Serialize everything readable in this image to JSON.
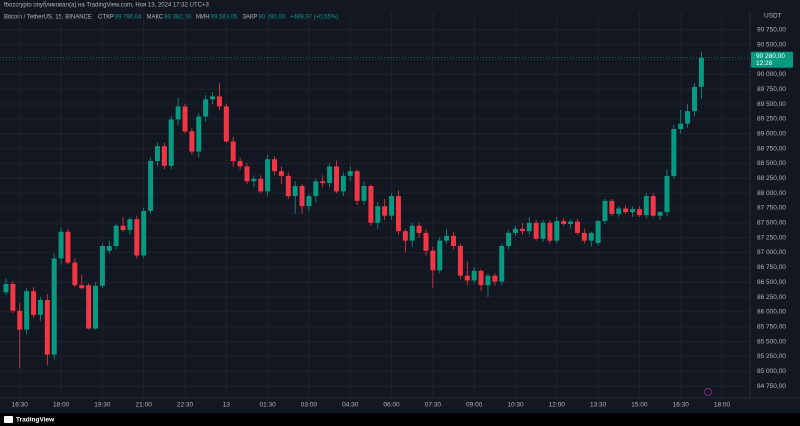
{
  "header": {
    "published": "fbozcrypto опубликовал(а) на TradingView.com, Ноя 13, 2024 17:32 UTC+3"
  },
  "footer": {
    "brand": "TradingView"
  },
  "chart_data": {
    "type": "candlestick",
    "symbol": "Bitcoin / TetherUS, 15, BINANCE",
    "legend": [
      {
        "label": "ОТКР",
        "value": "89 790,04"
      },
      {
        "label": "МАКС",
        "value": "90 382,00"
      },
      {
        "label": "МИН",
        "value": "89 589,05"
      },
      {
        "label": "ЗАКР",
        "value": "90 280,00"
      }
    ],
    "change": "+489,97 (+0,55%)",
    "currency": "USDT",
    "up_color": "#089981",
    "down_color": "#f23645",
    "grid": true,
    "categories": [
      null,
      null,
      "16:30",
      null,
      null,
      null,
      null,
      null,
      "18:00",
      null,
      null,
      null,
      null,
      null,
      "19:30",
      null,
      null,
      null,
      null,
      null,
      "21:00",
      null,
      null,
      null,
      null,
      null,
      "22:30",
      null,
      null,
      null,
      null,
      null,
      "13",
      null,
      null,
      null,
      null,
      null,
      "01:30",
      null,
      null,
      null,
      null,
      null,
      "03:00",
      null,
      null,
      null,
      null,
      null,
      "04:30",
      null,
      null,
      null,
      null,
      null,
      "06:00",
      null,
      null,
      null,
      null,
      null,
      "07:30",
      null,
      null,
      null,
      null,
      null,
      "09:00",
      null,
      null,
      null,
      null,
      null,
      "10:30",
      null,
      null,
      null,
      null,
      null,
      "12:00",
      null,
      null,
      null,
      null,
      null,
      "13:30",
      null,
      null,
      null,
      null,
      null,
      "15:00",
      null,
      null,
      null,
      null,
      null,
      "16:30",
      null,
      null,
      null,
      null,
      null,
      "18:00"
    ],
    "open": [
      86330,
      86470,
      86020,
      85700,
      86350,
      85950,
      86200,
      85280,
      86900,
      87350,
      86830,
      86450,
      86450,
      85720,
      86440,
      87030,
      87110,
      87450,
      87380,
      87560,
      86950,
      87700,
      88540,
      88790,
      88460,
      89240,
      89460,
      89040,
      88700,
      89290,
      89580,
      89630,
      89460,
      88870,
      88540,
      88450,
      88200,
      88240,
      88030,
      88570,
      88370,
      88290,
      87950,
      88120,
      87780,
      87950,
      88200,
      88170,
      88450,
      88030,
      88290,
      88370,
      87870,
      88120,
      87500,
      87780,
      87620,
      87950,
      87360,
      87200,
      87450,
      87330,
      87030,
      86700,
      87200,
      87280,
      87110,
      86610,
      86530,
      86690,
      86450,
      86610,
      86510,
      87110,
      87330,
      87400,
      87360,
      87500,
      87230,
      87500,
      87200,
      87530,
      87480,
      87520,
      87330,
      87200,
      87160,
      87530,
      87870,
      87650,
      87740,
      87680,
      87730,
      87630,
      87950,
      87620,
      87680,
      88290,
      89080,
      89170,
      89380,
      89790.04,
      null,
      null,
      null
    ],
    "high": [
      86560,
      86520,
      86150,
      86400,
      86420,
      86250,
      86300,
      86980,
      87420,
      87400,
      86900,
      86620,
      86480,
      86500,
      87150,
      87200,
      87480,
      87600,
      87600,
      87620,
      87750,
      88600,
      88850,
      88850,
      89300,
      89600,
      89500,
      89100,
      89350,
      89650,
      89700,
      89850,
      89500,
      88950,
      88600,
      88500,
      88300,
      88300,
      88650,
      88620,
      88450,
      88350,
      88200,
      88150,
      87990,
      88250,
      88300,
      88500,
      88550,
      88350,
      88450,
      88400,
      88200,
      88150,
      87850,
      87900,
      88000,
      88050,
      87400,
      87500,
      87500,
      87400,
      87100,
      87250,
      87400,
      87350,
      87150,
      86850,
      86750,
      86720,
      86650,
      86650,
      87150,
      87380,
      87450,
      87500,
      87600,
      87550,
      87550,
      87550,
      87600,
      87580,
      87560,
      87560,
      87400,
      87350,
      87550,
      87900,
      87900,
      87780,
      87800,
      87780,
      87780,
      88000,
      88000,
      87700,
      88400,
      89150,
      89400,
      89500,
      89850,
      90382,
      null,
      null,
      null
    ],
    "low": [
      86280,
      85980,
      85050,
      85620,
      85900,
      85850,
      85100,
      85200,
      86800,
      86800,
      86420,
      86380,
      85700,
      85700,
      86400,
      86980,
      87050,
      87350,
      87300,
      86900,
      86900,
      87650,
      88450,
      88400,
      88400,
      89150,
      89000,
      88650,
      88600,
      89200,
      89500,
      89400,
      88850,
      88450,
      88400,
      88150,
      88100,
      88000,
      87950,
      88300,
      88150,
      87900,
      87650,
      87650,
      87700,
      87850,
      88100,
      88100,
      88000,
      87950,
      88200,
      87800,
      87800,
      87450,
      87400,
      87550,
      87550,
      87300,
      87000,
      87100,
      87250,
      86950,
      86400,
      86650,
      87150,
      87050,
      86550,
      86450,
      86480,
      86350,
      86250,
      86450,
      86450,
      87050,
      87280,
      87300,
      87300,
      87200,
      87180,
      87150,
      87150,
      87450,
      87400,
      87300,
      87150,
      87100,
      87120,
      87480,
      87620,
      87600,
      87650,
      87600,
      87600,
      87580,
      87600,
      87550,
      87620,
      88250,
      89000,
      89100,
      89300,
      89589.05,
      null,
      null,
      null
    ],
    "close": [
      86470,
      86020,
      85700,
      86350,
      85950,
      86200,
      85280,
      86900,
      87350,
      86830,
      86450,
      86400,
      85720,
      86440,
      87110,
      87110,
      87450,
      87380,
      87560,
      86950,
      87700,
      88540,
      88790,
      88460,
      89240,
      89460,
      89040,
      88700,
      89290,
      89580,
      89630,
      89460,
      88870,
      88540,
      88450,
      88200,
      88240,
      88030,
      88570,
      88370,
      88290,
      87950,
      88120,
      87780,
      87950,
      88200,
      88170,
      88450,
      88030,
      88290,
      88370,
      87870,
      88120,
      87500,
      87780,
      87620,
      87950,
      87360,
      87200,
      87450,
      87330,
      87030,
      86700,
      87200,
      87280,
      87110,
      86610,
      86530,
      86690,
      86450,
      86610,
      86510,
      87110,
      87330,
      87400,
      87360,
      87500,
      87230,
      87500,
      87200,
      87530,
      87480,
      87520,
      87330,
      87200,
      87330,
      87530,
      87870,
      87650,
      87740,
      87680,
      87730,
      87630,
      87950,
      87620,
      87680,
      88290,
      89080,
      89170,
      89380,
      89790,
      90280,
      null,
      null,
      null
    ],
    "last_price": {
      "value": 90280,
      "label": "90 280,00"
    },
    "countdown": "12:28",
    "ylim": [
      84550,
      91050
    ],
    "yticks": [
      {
        "value": 84750,
        "label": "84 750,00"
      },
      {
        "value": 85000,
        "label": "85 000,00"
      },
      {
        "value": 85250,
        "label": "85 250,00"
      },
      {
        "value": 85500,
        "label": "85 500,00"
      },
      {
        "value": 85750,
        "label": "85 750,00"
      },
      {
        "value": 86000,
        "label": "86 000,00"
      },
      {
        "value": 86250,
        "label": "86 250,00"
      },
      {
        "value": 86500,
        "label": "86 500,00"
      },
      {
        "value": 86750,
        "label": "86 750,00"
      },
      {
        "value": 87000,
        "label": "87 000,00"
      },
      {
        "value": 87250,
        "label": "87 250,00"
      },
      {
        "value": 87500,
        "label": "87 500,00"
      },
      {
        "value": 87750,
        "label": "87 750,00"
      },
      {
        "value": 88000,
        "label": "88 000,00"
      },
      {
        "value": 88250,
        "label": "88 250,00"
      },
      {
        "value": 88500,
        "label": "88 500,00"
      },
      {
        "value": 88750,
        "label": "88 750,00"
      },
      {
        "value": 89000,
        "label": "89 000,00"
      },
      {
        "value": 89250,
        "label": "89 250,00"
      },
      {
        "value": 89500,
        "label": "89 500,00"
      },
      {
        "value": 89750,
        "label": "89 750,00"
      },
      {
        "value": 90000,
        "label": "90 000,00"
      },
      {
        "value": 90250,
        "label": "90 250,00"
      },
      {
        "value": 90500,
        "label": "90 500,00"
      },
      {
        "value": 90750,
        "label": "90 750,00"
      }
    ]
  }
}
